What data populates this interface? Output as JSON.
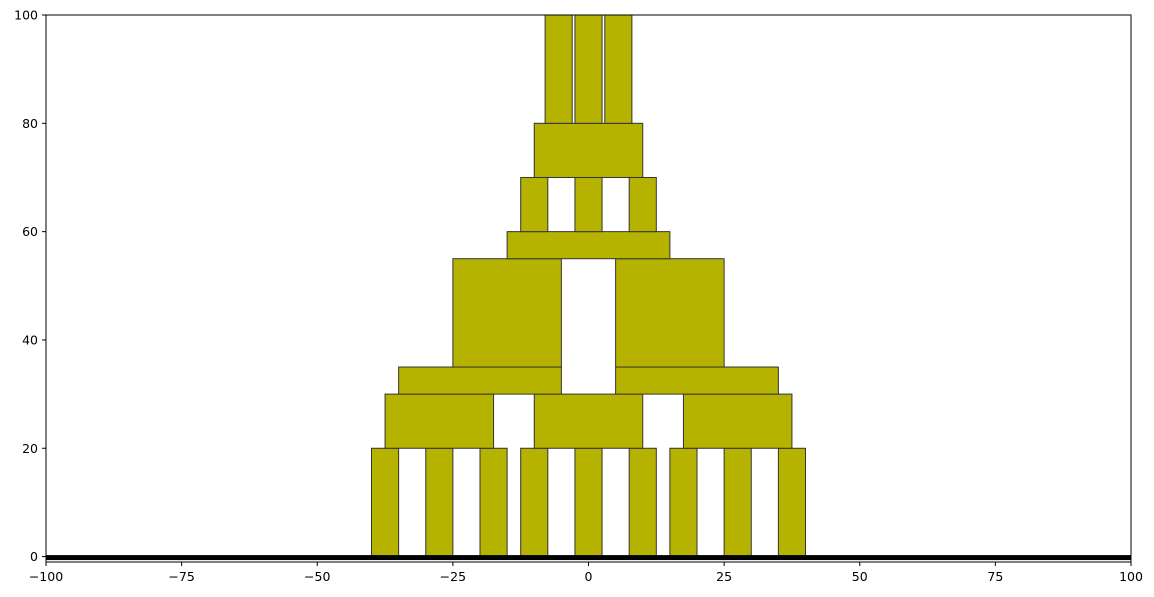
{
  "chart_data": {
    "type": "bar",
    "title": "",
    "xlabel": "",
    "ylabel": "",
    "xlim": [
      -100,
      100
    ],
    "ylim": [
      -1,
      100
    ],
    "grid": false,
    "bar_color": "#b5b300",
    "edge_color": "#333333",
    "baseline_color": "#000000",
    "x_ticks": [
      -100,
      -75,
      -50,
      -25,
      0,
      25,
      50,
      75,
      100
    ],
    "x_tick_labels": [
      "−100",
      "−75",
      "−50",
      "−25",
      "0",
      "25",
      "50",
      "75",
      "100"
    ],
    "y_ticks": [
      0,
      20,
      40,
      60,
      80,
      100
    ],
    "y_tick_labels": [
      "0",
      "20",
      "40",
      "60",
      "80",
      "100"
    ],
    "rectangles": [
      {
        "x0": -40,
        "x1": -35,
        "y0": 0,
        "y1": 20
      },
      {
        "x0": -30,
        "x1": -25,
        "y0": 0,
        "y1": 20
      },
      {
        "x0": -20,
        "x1": -15,
        "y0": 0,
        "y1": 20
      },
      {
        "x0": -12.5,
        "x1": -7.5,
        "y0": 0,
        "y1": 20
      },
      {
        "x0": -2.5,
        "x1": 2.5,
        "y0": 0,
        "y1": 20
      },
      {
        "x0": 7.5,
        "x1": 12.5,
        "y0": 0,
        "y1": 20
      },
      {
        "x0": 15,
        "x1": 20,
        "y0": 0,
        "y1": 20
      },
      {
        "x0": 25,
        "x1": 30,
        "y0": 0,
        "y1": 20
      },
      {
        "x0": 35,
        "x1": 40,
        "y0": 0,
        "y1": 20
      },
      {
        "x0": -37.5,
        "x1": -17.5,
        "y0": 20,
        "y1": 30
      },
      {
        "x0": -10,
        "x1": 10,
        "y0": 20,
        "y1": 30
      },
      {
        "x0": 17.5,
        "x1": 37.5,
        "y0": 20,
        "y1": 30
      },
      {
        "x0": -35,
        "x1": -5,
        "y0": 30,
        "y1": 35
      },
      {
        "x0": 5,
        "x1": 35,
        "y0": 30,
        "y1": 35
      },
      {
        "x0": -25,
        "x1": -5,
        "y0": 35,
        "y1": 55
      },
      {
        "x0": 5,
        "x1": 25,
        "y0": 35,
        "y1": 55
      },
      {
        "x0": -15,
        "x1": 15,
        "y0": 55,
        "y1": 60
      },
      {
        "x0": -12.5,
        "x1": -7.5,
        "y0": 60,
        "y1": 70
      },
      {
        "x0": -2.5,
        "x1": 2.5,
        "y0": 60,
        "y1": 70
      },
      {
        "x0": 7.5,
        "x1": 12.5,
        "y0": 60,
        "y1": 70
      },
      {
        "x0": -10,
        "x1": 10,
        "y0": 70,
        "y1": 80
      },
      {
        "x0": -8,
        "x1": -3,
        "y0": 80,
        "y1": 100
      },
      {
        "x0": -2.5,
        "x1": 2.5,
        "y0": 80,
        "y1": 100
      },
      {
        "x0": 3,
        "x1": 8,
        "y0": 80,
        "y1": 100
      }
    ]
  }
}
